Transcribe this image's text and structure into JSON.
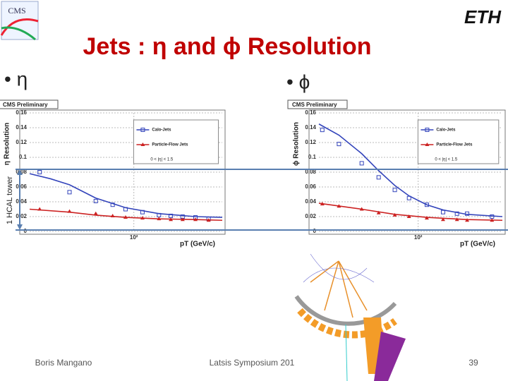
{
  "slide": {
    "title": "Jets : η and ϕ Resolution",
    "bullet_left": "• η",
    "bullet_right": "• ϕ",
    "logo_left": "CMS",
    "logo_right": "ETH",
    "arrow_label": "1 HCAL tower",
    "footer_left": "Boris Mangano",
    "footer_center": "Latsis Symposium 201",
    "page_number": "39"
  },
  "chart_data": [
    {
      "type": "scatter",
      "header": "CMS Preliminary",
      "ylabel": "η Resolution",
      "xlabel": "pT (GeV/c)",
      "annotation": "0 < |η| < 1.5",
      "xscale": "log",
      "xlim": [
        15,
        500
      ],
      "xticks": [
        {
          "value": 100,
          "label": "10²"
        }
      ],
      "ylim": [
        0,
        0.16
      ],
      "yticks": [
        0,
        0.02,
        0.04,
        0.06,
        0.08,
        0.1,
        0.12,
        0.14,
        0.16
      ],
      "grid": true,
      "legend": "upper right",
      "series": [
        {
          "name": "Calo-Jets",
          "color": "#3344bb",
          "marker": "square",
          "x": [
            18,
            31,
            50,
            68,
            86,
            117,
            158,
            196,
            243,
            307,
            390
          ],
          "values": [
            0.08,
            0.053,
            0.041,
            0.036,
            0.03,
            0.026,
            0.022,
            0.021,
            0.02,
            0.019,
            0.017
          ],
          "fit": {
            "x": [
              15,
              22,
              31,
              50,
              86,
              158,
              307,
              500
            ],
            "values": [
              0.078,
              0.071,
              0.063,
              0.045,
              0.032,
              0.024,
              0.02,
              0.019
            ]
          }
        },
        {
          "name": "Particle-Flow Jets",
          "color": "#cc2222",
          "marker": "triangle",
          "x": [
            18,
            31,
            50,
            68,
            86,
            117,
            158,
            196,
            243,
            307,
            390
          ],
          "values": [
            0.03,
            0.027,
            0.024,
            0.021,
            0.019,
            0.018,
            0.017,
            0.016,
            0.016,
            0.016,
            0.015
          ],
          "fit": {
            "x": [
              15,
              31,
              50,
              86,
              158,
              307,
              500
            ],
            "values": [
              0.03,
              0.026,
              0.022,
              0.019,
              0.017,
              0.016,
              0.015
            ]
          }
        }
      ]
    },
    {
      "type": "scatter",
      "header": "CMS Preliminary",
      "ylabel": "ϕ Resolution",
      "xlabel": "pT (GeV/c)",
      "annotation": "0 < |η| < 1.5",
      "xscale": "log",
      "xlim": [
        15,
        500
      ],
      "xticks": [
        {
          "value": 100,
          "label": "10²"
        }
      ],
      "ylim": [
        0,
        0.16
      ],
      "yticks": [
        0,
        0.02,
        0.04,
        0.06,
        0.08,
        0.1,
        0.12,
        0.14,
        0.16
      ],
      "grid": true,
      "legend": "upper right",
      "series": [
        {
          "name": "Calo-Jets",
          "color": "#3344bb",
          "marker": "square",
          "x": [
            16,
            22,
            34,
            47,
            64,
            84,
            118,
            161,
            210,
            255,
            410
          ],
          "values": [
            0.137,
            0.118,
            0.092,
            0.073,
            0.056,
            0.045,
            0.036,
            0.026,
            0.024,
            0.024,
            0.02
          ],
          "fit": {
            "x": [
              15,
              22,
              34,
              47,
              64,
              84,
              118,
              161,
              255,
              500
            ],
            "values": [
              0.145,
              0.13,
              0.105,
              0.082,
              0.062,
              0.048,
              0.036,
              0.029,
              0.023,
              0.02
            ]
          }
        },
        {
          "name": "Particle-Flow Jets",
          "color": "#cc2222",
          "marker": "triangle",
          "x": [
            16,
            22,
            34,
            47,
            64,
            84,
            118,
            161,
            210,
            255,
            410
          ],
          "values": [
            0.037,
            0.034,
            0.03,
            0.025,
            0.022,
            0.02,
            0.018,
            0.016,
            0.016,
            0.015,
            0.015
          ],
          "fit": {
            "x": [
              15,
              34,
              64,
              118,
              255,
              500
            ],
            "values": [
              0.038,
              0.03,
              0.023,
              0.019,
              0.016,
              0.015
            ]
          }
        }
      ]
    }
  ]
}
